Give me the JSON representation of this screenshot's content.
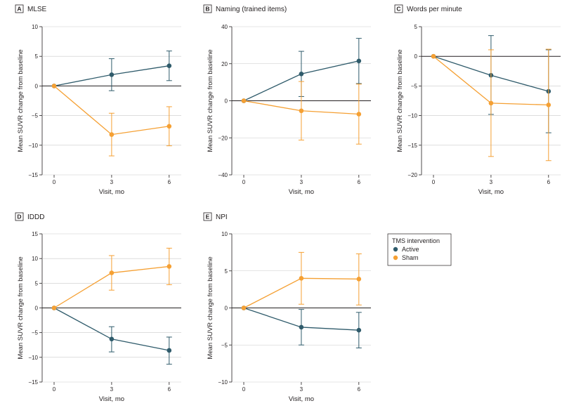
{
  "legend": {
    "title": "TMS intervention",
    "items": [
      {
        "label": "Active",
        "color": "#2f5b6b"
      },
      {
        "label": "Sham",
        "color": "#f5a033"
      }
    ]
  },
  "chart_data": [
    {
      "type": "line",
      "letter": "A",
      "title": "MLSE",
      "xlabel": "Visit, mo",
      "ylabel": "Mean SUVR change from baseline",
      "x": [
        0,
        3,
        6
      ],
      "ylim": [
        -15,
        10
      ],
      "yticks": [
        -15,
        -10,
        -5,
        0,
        5,
        10
      ],
      "series": [
        {
          "name": "Active",
          "values": [
            0,
            1.9,
            3.4
          ],
          "lower": [
            0,
            -0.8,
            0.9
          ],
          "upper": [
            0,
            4.6,
            5.9
          ]
        },
        {
          "name": "Sham",
          "values": [
            0,
            -8.2,
            -6.8
          ],
          "lower": [
            0,
            -11.8,
            -10.1
          ],
          "upper": [
            0,
            -4.6,
            -3.5
          ]
        }
      ]
    },
    {
      "type": "line",
      "letter": "B",
      "title": "Naming (trained items)",
      "xlabel": "Visit, mo",
      "ylabel": "Mean SUVR change from baseline",
      "x": [
        0,
        3,
        6
      ],
      "ylim": [
        -40,
        40
      ],
      "yticks": [
        -40,
        -20,
        0,
        20,
        40
      ],
      "series": [
        {
          "name": "Active",
          "values": [
            0,
            14.5,
            21.5
          ],
          "lower": [
            0,
            2.3,
            9.3
          ],
          "upper": [
            0,
            26.7,
            33.7
          ]
        },
        {
          "name": "Sham",
          "values": [
            0,
            -5.4,
            -7.2
          ],
          "lower": [
            0,
            -21.2,
            -23.4
          ],
          "upper": [
            0,
            10.4,
            9.0
          ]
        }
      ]
    },
    {
      "type": "line",
      "letter": "C",
      "title": "Words per minute",
      "xlabel": "Visit, mo",
      "ylabel": "Mean SUVR change from baseline",
      "x": [
        0,
        3,
        6
      ],
      "ylim": [
        -20,
        5
      ],
      "yticks": [
        -20,
        -15,
        -10,
        -5,
        0,
        5
      ],
      "series": [
        {
          "name": "Active",
          "values": [
            0,
            -3.2,
            -5.9
          ],
          "lower": [
            0,
            -9.8,
            -12.9
          ],
          "upper": [
            0,
            3.5,
            1.1
          ]
        },
        {
          "name": "Sham",
          "values": [
            0,
            -7.9,
            -8.2
          ],
          "lower": [
            0,
            -16.9,
            -17.6
          ],
          "upper": [
            0,
            1.1,
            1.2
          ]
        }
      ]
    },
    {
      "type": "line",
      "letter": "D",
      "title": "IDDD",
      "xlabel": "Visit, mo",
      "ylabel": "Mean SUVR change from baseline",
      "x": [
        0,
        3,
        6
      ],
      "ylim": [
        -15,
        15
      ],
      "yticks": [
        -15,
        -10,
        -5,
        0,
        5,
        10,
        15
      ],
      "series": [
        {
          "name": "Active",
          "values": [
            0,
            -6.3,
            -8.6
          ],
          "lower": [
            0,
            -8.9,
            -11.4
          ],
          "upper": [
            0,
            -3.8,
            -5.9
          ]
        },
        {
          "name": "Sham",
          "values": [
            0,
            7.1,
            8.4
          ],
          "lower": [
            0,
            3.6,
            4.7
          ],
          "upper": [
            0,
            10.6,
            12.1
          ]
        }
      ]
    },
    {
      "type": "line",
      "letter": "E",
      "title": "NPI",
      "xlabel": "Visit, mo",
      "ylabel": "Mean SUVR change from baseline",
      "x": [
        0,
        3,
        6
      ],
      "ylim": [
        -10,
        10
      ],
      "yticks": [
        -10,
        -5,
        0,
        5,
        10
      ],
      "series": [
        {
          "name": "Active",
          "values": [
            0,
            -2.6,
            -3.0
          ],
          "lower": [
            0,
            -5.0,
            -5.4
          ],
          "upper": [
            0,
            -0.2,
            -0.6
          ]
        },
        {
          "name": "Sham",
          "values": [
            0,
            4.0,
            3.9
          ],
          "lower": [
            0,
            0.5,
            0.4
          ],
          "upper": [
            0,
            7.5,
            7.3
          ]
        }
      ]
    }
  ]
}
